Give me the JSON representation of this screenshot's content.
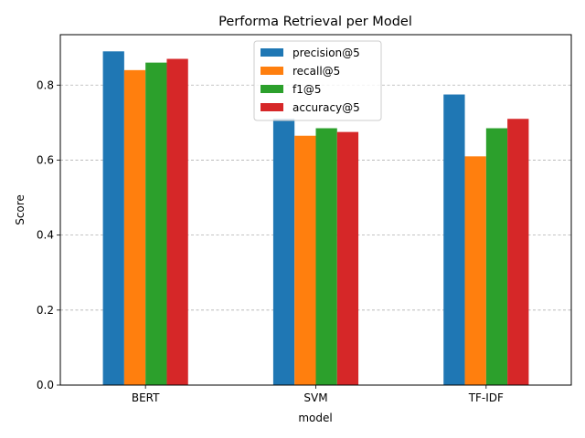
{
  "chart_data": {
    "type": "bar",
    "title": "Performa Retrieval per Model",
    "xlabel": "model",
    "ylabel": "Score",
    "categories": [
      "BERT",
      "SVM",
      "TF-IDF"
    ],
    "series": [
      {
        "name": "precision@5",
        "values": [
          0.89,
          0.71,
          0.775
        ],
        "color": "#1f77b4"
      },
      {
        "name": "recall@5",
        "values": [
          0.84,
          0.665,
          0.61
        ],
        "color": "#ff7f0e"
      },
      {
        "name": "f1@5",
        "values": [
          0.86,
          0.685,
          0.685
        ],
        "color": "#2ca02c"
      },
      {
        "name": "accuracy@5",
        "values": [
          0.87,
          0.675,
          0.71
        ],
        "color": "#d62728"
      }
    ],
    "ylim": [
      0,
      0.9345
    ],
    "yticks": [
      0.0,
      0.2,
      0.4,
      0.6,
      0.8
    ],
    "ytick_labels": [
      "0.0",
      "0.2",
      "0.4",
      "0.6",
      "0.8"
    ],
    "grid": "y-dashed",
    "legend_position": "top-center"
  }
}
